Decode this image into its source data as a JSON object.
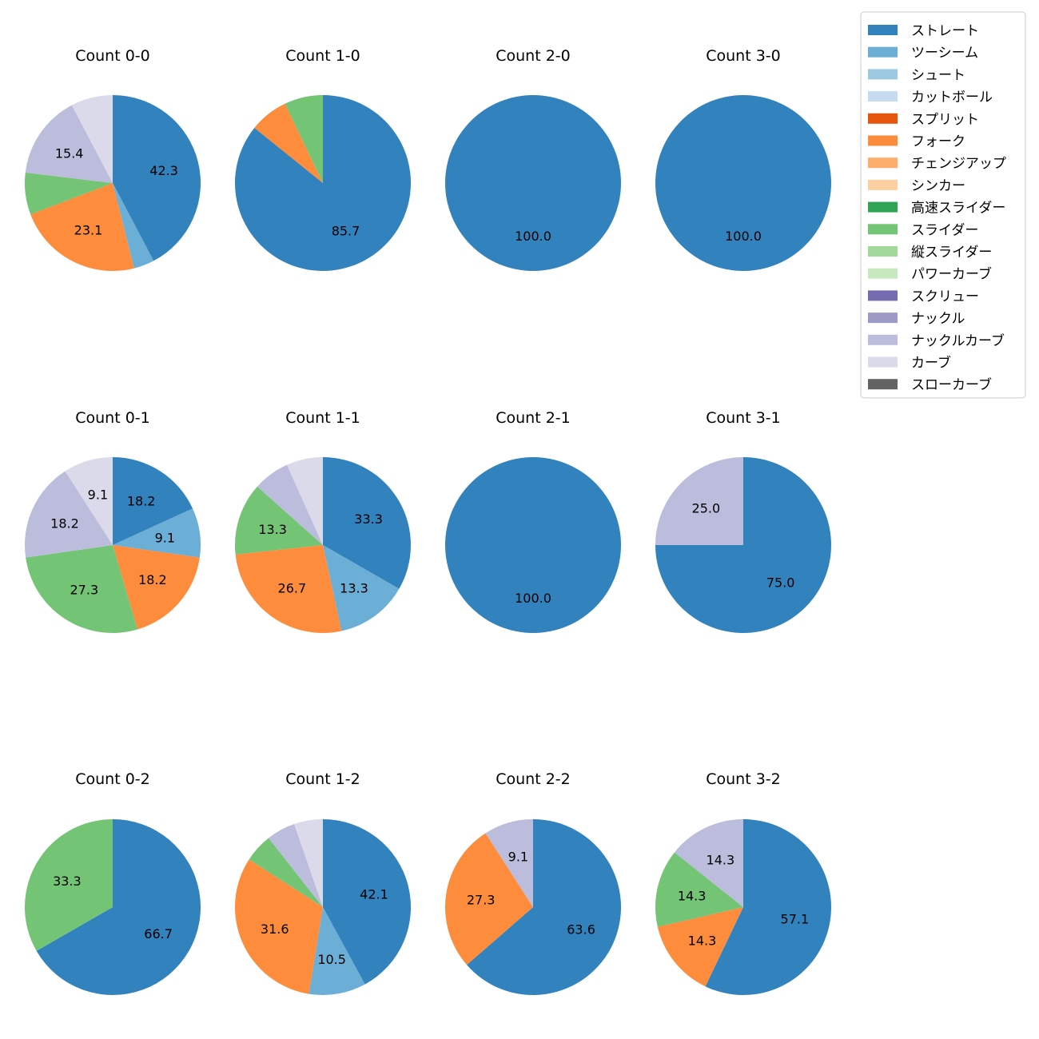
{
  "chart_data": {
    "type": "pie",
    "legend_position": "top-right",
    "pitch_types": [
      {
        "name": "ストレート",
        "color": "#3182bd"
      },
      {
        "name": "ツーシーム",
        "color": "#6baed6"
      },
      {
        "name": "シュート",
        "color": "#9ecae1"
      },
      {
        "name": "カットボール",
        "color": "#c6dbef"
      },
      {
        "name": "スプリット",
        "color": "#e6550d"
      },
      {
        "name": "フォーク",
        "color": "#fd8d3c"
      },
      {
        "name": "チェンジアップ",
        "color": "#fdae6b"
      },
      {
        "name": "シンカー",
        "color": "#fdd0a2"
      },
      {
        "name": "高速スライダー",
        "color": "#31a354"
      },
      {
        "name": "スライダー",
        "color": "#74c476"
      },
      {
        "name": "縦スライダー",
        "color": "#a1d99b"
      },
      {
        "name": "パワーカーブ",
        "color": "#c7e9c0"
      },
      {
        "name": "スクリュー",
        "color": "#756bb1"
      },
      {
        "name": "ナックル",
        "color": "#9e9ac8"
      },
      {
        "name": "ナックルカーブ",
        "color": "#bcbddc"
      },
      {
        "name": "カーブ",
        "color": "#dadaeb"
      },
      {
        "name": "スローカーブ",
        "color": "#636363"
      }
    ],
    "pies": [
      {
        "title": "Count 0-0",
        "slices": [
          {
            "pitch": "ストレート",
            "value": 42.3,
            "label": "42.3"
          },
          {
            "pitch": "ツーシーム",
            "value": 3.8,
            "label": ""
          },
          {
            "pitch": "フォーク",
            "value": 23.1,
            "label": "23.1"
          },
          {
            "pitch": "スライダー",
            "value": 7.7,
            "label": ""
          },
          {
            "pitch": "ナックルカーブ",
            "value": 15.4,
            "label": "15.4"
          },
          {
            "pitch": "カーブ",
            "value": 7.7,
            "label": ""
          }
        ]
      },
      {
        "title": "Count 1-0",
        "slices": [
          {
            "pitch": "ストレート",
            "value": 85.7,
            "label": "85.7"
          },
          {
            "pitch": "フォーク",
            "value": 7.1,
            "label": ""
          },
          {
            "pitch": "スライダー",
            "value": 7.1,
            "label": ""
          }
        ]
      },
      {
        "title": "Count 2-0",
        "slices": [
          {
            "pitch": "ストレート",
            "value": 100.0,
            "label": "100.0"
          }
        ]
      },
      {
        "title": "Count 3-0",
        "slices": [
          {
            "pitch": "ストレート",
            "value": 100.0,
            "label": "100.0"
          }
        ]
      },
      {
        "title": "Count 0-1",
        "slices": [
          {
            "pitch": "ストレート",
            "value": 18.2,
            "label": "18.2"
          },
          {
            "pitch": "ツーシーム",
            "value": 9.1,
            "label": "9.1"
          },
          {
            "pitch": "フォーク",
            "value": 18.2,
            "label": "18.2"
          },
          {
            "pitch": "スライダー",
            "value": 27.3,
            "label": "27.3"
          },
          {
            "pitch": "ナックルカーブ",
            "value": 18.2,
            "label": "18.2"
          },
          {
            "pitch": "カーブ",
            "value": 9.1,
            "label": "9.1"
          }
        ]
      },
      {
        "title": "Count 1-1",
        "slices": [
          {
            "pitch": "ストレート",
            "value": 33.3,
            "label": "33.3"
          },
          {
            "pitch": "ツーシーム",
            "value": 13.3,
            "label": "13.3"
          },
          {
            "pitch": "フォーク",
            "value": 26.7,
            "label": "26.7"
          },
          {
            "pitch": "スライダー",
            "value": 13.3,
            "label": "13.3"
          },
          {
            "pitch": "ナックルカーブ",
            "value": 6.7,
            "label": ""
          },
          {
            "pitch": "カーブ",
            "value": 6.7,
            "label": ""
          }
        ]
      },
      {
        "title": "Count 2-1",
        "slices": [
          {
            "pitch": "ストレート",
            "value": 100.0,
            "label": "100.0"
          }
        ]
      },
      {
        "title": "Count 3-1",
        "slices": [
          {
            "pitch": "ストレート",
            "value": 75.0,
            "label": "75.0"
          },
          {
            "pitch": "ナックルカーブ",
            "value": 25.0,
            "label": "25.0"
          }
        ]
      },
      {
        "title": "Count 0-2",
        "slices": [
          {
            "pitch": "ストレート",
            "value": 66.7,
            "label": "66.7"
          },
          {
            "pitch": "スライダー",
            "value": 33.3,
            "label": "33.3"
          }
        ]
      },
      {
        "title": "Count 1-2",
        "slices": [
          {
            "pitch": "ストレート",
            "value": 42.1,
            "label": "42.1"
          },
          {
            "pitch": "ツーシーム",
            "value": 10.5,
            "label": "10.5"
          },
          {
            "pitch": "フォーク",
            "value": 31.6,
            "label": "31.6"
          },
          {
            "pitch": "スライダー",
            "value": 5.3,
            "label": ""
          },
          {
            "pitch": "ナックルカーブ",
            "value": 5.3,
            "label": ""
          },
          {
            "pitch": "カーブ",
            "value": 5.3,
            "label": ""
          }
        ]
      },
      {
        "title": "Count 2-2",
        "slices": [
          {
            "pitch": "ストレート",
            "value": 63.6,
            "label": "63.6"
          },
          {
            "pitch": "フォーク",
            "value": 27.3,
            "label": "27.3"
          },
          {
            "pitch": "ナックルカーブ",
            "value": 9.1,
            "label": "9.1"
          }
        ]
      },
      {
        "title": "Count 3-2",
        "slices": [
          {
            "pitch": "ストレート",
            "value": 57.1,
            "label": "57.1"
          },
          {
            "pitch": "フォーク",
            "value": 14.3,
            "label": "14.3"
          },
          {
            "pitch": "スライダー",
            "value": 14.3,
            "label": "14.3"
          },
          {
            "pitch": "ナックルカーブ",
            "value": 14.3,
            "label": "14.3"
          }
        ]
      }
    ]
  }
}
